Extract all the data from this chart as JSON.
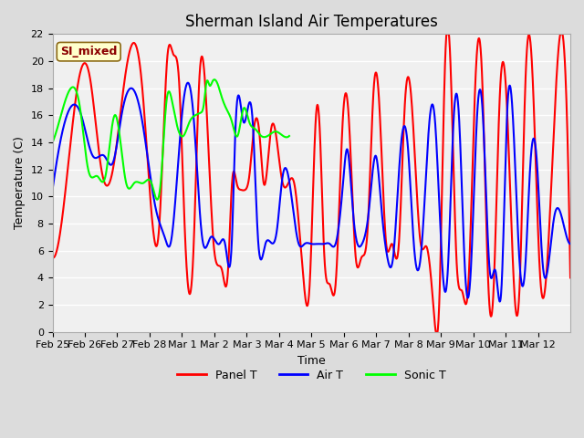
{
  "title": "Sherman Island Air Temperatures",
  "xlabel": "Time",
  "ylabel": "Temperature (C)",
  "ylim": [
    0,
    22
  ],
  "yticks": [
    0,
    2,
    4,
    6,
    8,
    10,
    12,
    14,
    16,
    18,
    20,
    22
  ],
  "xtick_labels": [
    "Feb 25",
    "Feb 26",
    "Feb 27",
    "Feb 28",
    "Mar 1",
    "Mar 2",
    "Mar 3",
    "Mar 4",
    "Mar 5",
    "Mar 6",
    "Mar 7",
    "Mar 8",
    "Mar 9",
    "Mar 10",
    "Mar 11",
    "Mar 12"
  ],
  "bg_color": "#dcdcdc",
  "plot_bg": "#f0f0f0",
  "annotation_text": "SI_mixed",
  "annotation_bg": "#ffffcc",
  "annotation_border": "#cc0000",
  "line_width": 1.5,
  "title_fontsize": 12,
  "label_fontsize": 9,
  "tick_fontsize": 8
}
